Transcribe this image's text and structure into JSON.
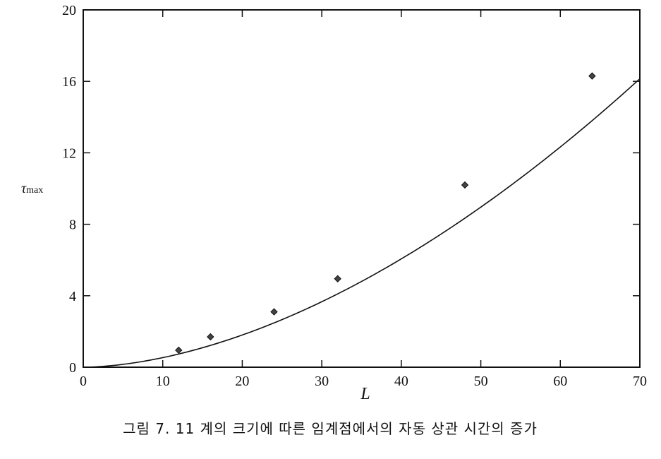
{
  "chart_data": {
    "type": "scatter",
    "xlabel": "L",
    "ylabel": "τmax",
    "ylabel_main": "τ",
    "ylabel_sub": "max",
    "xlim": [
      0,
      70
    ],
    "ylim": [
      0,
      20
    ],
    "xticks": [
      0,
      10,
      20,
      30,
      40,
      50,
      60,
      70
    ],
    "yticks": [
      0,
      4,
      8,
      12,
      16,
      20
    ],
    "grid": false,
    "points": [
      {
        "x": 12,
        "y": 0.95
      },
      {
        "x": 16,
        "y": 1.7
      },
      {
        "x": 24,
        "y": 3.1
      },
      {
        "x": 32,
        "y": 4.95
      },
      {
        "x": 48,
        "y": 10.2
      },
      {
        "x": 64,
        "y": 16.3
      }
    ],
    "fit_curve": {
      "form": "power",
      "a": 0.00953,
      "b": 1.75
    },
    "caption": "그림 7. 11  계의 크기에 따른 임계점에서의 자동 상관 시간의 증가"
  }
}
